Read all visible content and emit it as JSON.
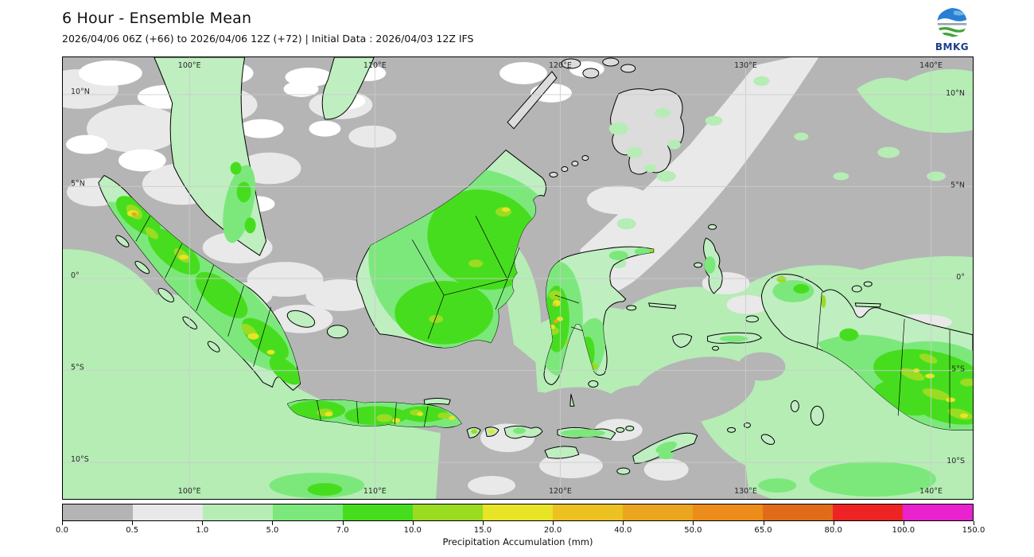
{
  "header": {
    "title": "6 Hour - Ensemble Mean",
    "subtitle": "2026/04/06 06Z (+66) to 2026/04/06 12Z (+72) | Initial Data : 2026/04/03 12Z IFS",
    "logo_text": "BMKG"
  },
  "map": {
    "lat_labels": [
      "10°N",
      "5°N",
      "0°",
      "5°S",
      "10°S"
    ],
    "lon_labels": [
      "100°E",
      "110°E",
      "120°E",
      "130°E",
      "140°E"
    ]
  },
  "colorbar": {
    "label": "Precipitation Accumulation (mm)",
    "ticks": [
      "0.0",
      "0.5",
      "1.0",
      "5.0",
      "7.0",
      "10.0",
      "15.0",
      "20.0",
      "40.0",
      "50.0",
      "65.0",
      "80.0",
      "100.0",
      "150.0"
    ],
    "colors": [
      "#b4b4b4",
      "#e8e8e8",
      "#b5edb5",
      "#7ce87c",
      "#47dd1f",
      "#9adc21",
      "#e8e426",
      "#ecc122",
      "#eca51e",
      "#ec8c1a",
      "#e06c1a",
      "#ee2424",
      "#e822cc"
    ]
  },
  "chart_data": {
    "type": "heatmap",
    "title": "6 Hour - Ensemble Mean",
    "subtitle": "2026/04/06 06Z (+66) to 2026/04/06 12Z (+72) | Initial Data : 2026/04/03 12Z IFS",
    "colorbar_label": "Precipitation Accumulation (mm)",
    "levels_mm": [
      0.0,
      0.5,
      1.0,
      5.0,
      7.0,
      10.0,
      15.0,
      20.0,
      40.0,
      50.0,
      65.0,
      80.0,
      100.0,
      150.0
    ],
    "level_colors": [
      "#b4b4b4",
      "#e8e8e8",
      "#b5edb5",
      "#7ce87c",
      "#47dd1f",
      "#9adc21",
      "#e8e426",
      "#ecc122",
      "#eca51e",
      "#ec8c1a",
      "#e06c1a",
      "#ee2424",
      "#e822cc"
    ],
    "x_tick_labels": [
      "100°E",
      "110°E",
      "120°E",
      "130°E",
      "140°E"
    ],
    "y_tick_labels": [
      "10°N",
      "5°N",
      "0°",
      "5°S",
      "10°S"
    ],
    "grid": true,
    "legend_position": "bottom"
  }
}
